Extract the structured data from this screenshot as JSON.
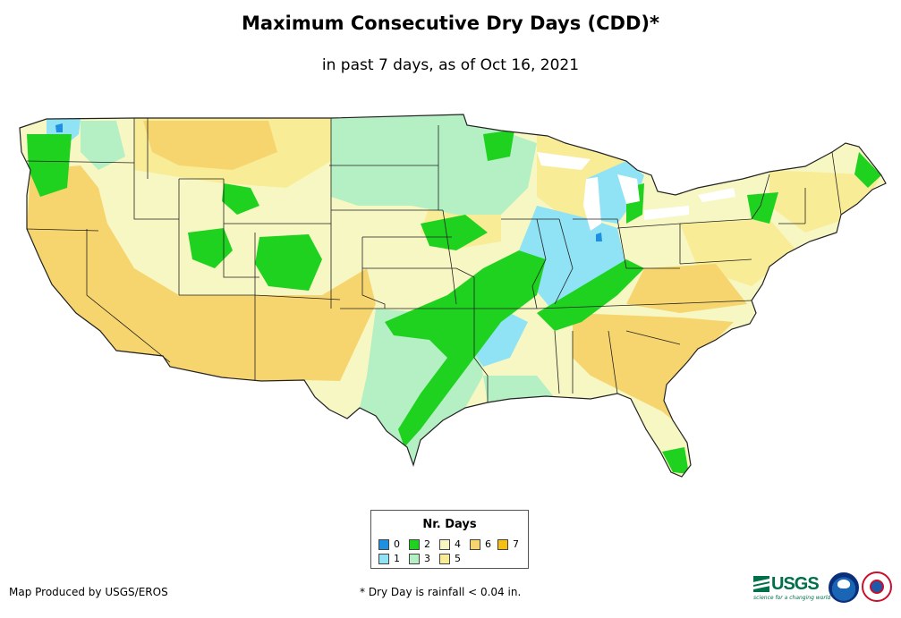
{
  "header": {
    "title": "Maximum Consecutive Dry Days (CDD)*",
    "subtitle": "in past 7 days, as of Oct 16, 2021"
  },
  "legend": {
    "title": "Nr. Days",
    "items": [
      {
        "label": "0",
        "color": "#1f8fe0"
      },
      {
        "label": "1",
        "color": "#8fe3f5"
      },
      {
        "label": "2",
        "color": "#1fd21f"
      },
      {
        "label": "3",
        "color": "#b4f0c3"
      },
      {
        "label": "4",
        "color": "#f7f7c4"
      },
      {
        "label": "5",
        "color": "#f9ec96"
      },
      {
        "label": "6",
        "color": "#f7d56e"
      },
      {
        "label": "7",
        "color": "#f5bf13"
      }
    ]
  },
  "footer": {
    "credit": "Map Produced by USGS/EROS",
    "note": "* Dry Day is rainfall < 0.04 in."
  },
  "logos": {
    "usgs_text": "USGS",
    "usgs_tagline": "science for a changing world",
    "icons": [
      "usgs-logo-icon",
      "noaa-logo-icon",
      "nws-logo-icon"
    ]
  }
}
